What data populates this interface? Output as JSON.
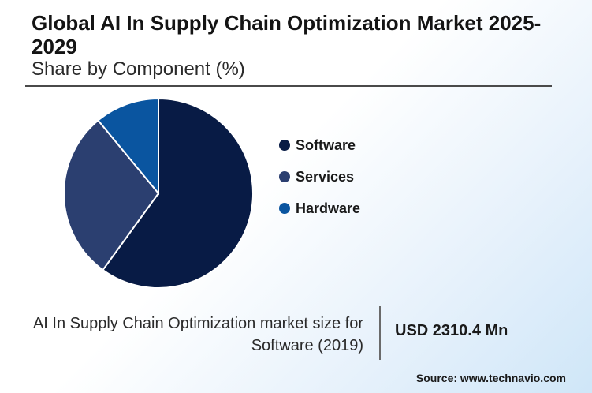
{
  "header": {
    "title": "Global AI In Supply Chain Optimization Market 2025-2029",
    "subtitle": "Share by Component (%)"
  },
  "chart_data": {
    "type": "pie",
    "title": "Global AI In Supply Chain Optimization Market 2025-2029",
    "subtitle": "Share by Component (%)",
    "categories": [
      "Software",
      "Services",
      "Hardware"
    ],
    "values": [
      60,
      29,
      11
    ],
    "colors": [
      "#081b45",
      "#2b3f70",
      "#0a55a0"
    ],
    "legend_position": "right"
  },
  "stat": {
    "label": "AI In Supply Chain Optimization market size for Software (2019)",
    "value": "USD 2310.4 Mn"
  },
  "source": "Source: www.technavio.com"
}
